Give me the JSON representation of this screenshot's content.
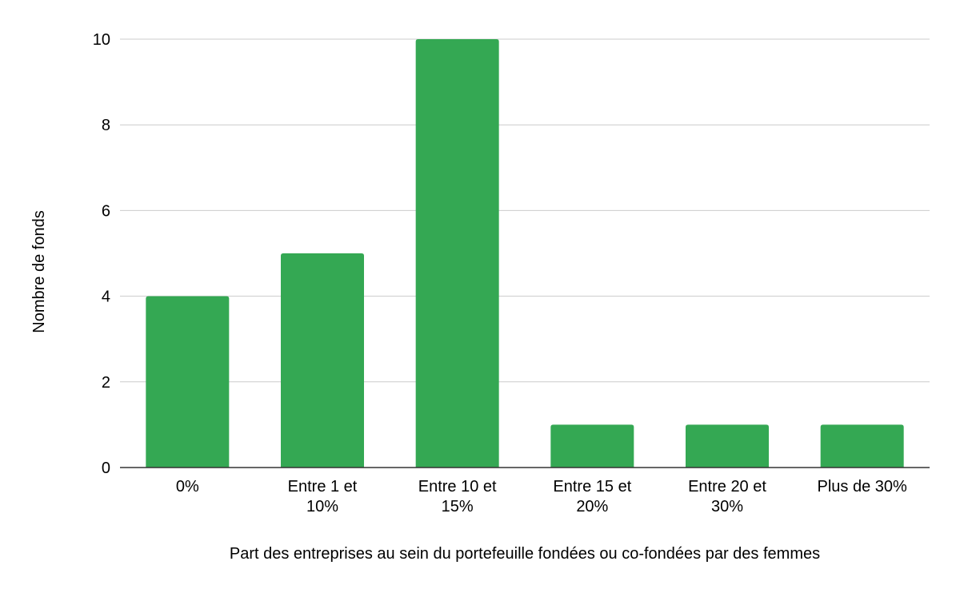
{
  "chart_data": {
    "type": "bar",
    "title": "",
    "xlabel": "Part des entreprises au sein du portefeuille fondées ou co-fondées par des femmes",
    "ylabel": "Nombre de fonds",
    "categories": [
      [
        "0%"
      ],
      [
        "Entre 1 et",
        "10%"
      ],
      [
        "Entre 10 et",
        "15%"
      ],
      [
        "Entre 15 et",
        "20%"
      ],
      [
        "Entre 20 et",
        "30%"
      ],
      [
        "Plus de 30%"
      ]
    ],
    "values": [
      4,
      5,
      10,
      1,
      1,
      1
    ],
    "ylim": [
      0,
      10
    ],
    "yticks": [
      "0",
      "2",
      "4",
      "6",
      "8",
      "10"
    ],
    "ytick_values": [
      0,
      2,
      4,
      6,
      8,
      10
    ],
    "grid": true,
    "legend": "none",
    "colors": {
      "bar": "#34a853",
      "grid": "#cccccc",
      "axis": "#333333",
      "text": "#000000"
    }
  }
}
